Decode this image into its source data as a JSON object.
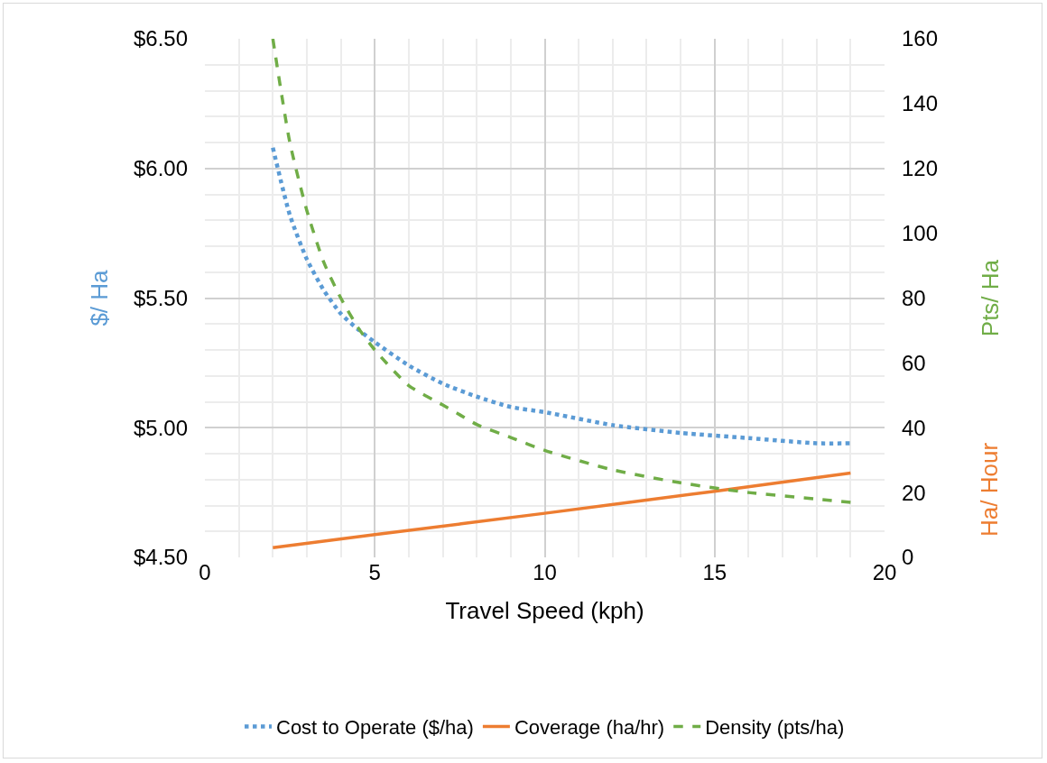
{
  "chart_data": {
    "type": "line",
    "xlabel": "Travel Speed (kph)",
    "ylabel": "$/ Ha",
    "y2label": "Pts/ Ha",
    "y3label": "Ha/ Hour",
    "xlim": [
      0,
      20
    ],
    "xticks": [
      0,
      5,
      10,
      15,
      20
    ],
    "ylim": [
      4.5,
      6.5
    ],
    "yticks": [
      {
        "value": 4.5,
        "label": "$4.50"
      },
      {
        "value": 5,
        "label": "$5.00"
      },
      {
        "value": 5.5,
        "label": "$5.50"
      },
      {
        "value": 6,
        "label": "$6.00"
      },
      {
        "value": 6.5,
        "label": "$6.50"
      }
    ],
    "y2lim": [
      0,
      160
    ],
    "y2ticks": [
      0,
      20,
      40,
      60,
      80,
      100,
      120,
      140,
      160
    ],
    "grid": true,
    "legend": "bottom",
    "marker": "none",
    "series": [
      {
        "name": "Cost to Operate ($/ha)",
        "color": "#5b9bd5",
        "line_style": "dotted",
        "x": [
          2,
          2.5,
          3,
          3.5,
          4,
          4.5,
          5,
          6,
          7,
          8,
          9,
          10,
          12,
          14,
          16,
          18,
          19
        ],
        "values": [
          6.08,
          5.82,
          5.65,
          5.53,
          5.44,
          5.38,
          5.33,
          5.24,
          5.17,
          5.12,
          5.08,
          5.06,
          5.01,
          4.98,
          4.96,
          4.94,
          4.94
        ]
      },
      {
        "name": "Coverage (ha/hr)",
        "color": "#ed7d31",
        "line_style": "solid",
        "axis": "y2",
        "x": [
          2,
          5,
          10,
          15,
          19
        ],
        "values": [
          3,
          7,
          13.6,
          20.4,
          26
        ]
      },
      {
        "name": "Density (pts/ha)",
        "color": "#70ad47",
        "line_style": "dashed",
        "axis": "y2",
        "x": [
          2,
          2.5,
          3,
          3.5,
          4,
          4.5,
          5,
          6,
          7,
          7.5,
          8,
          9,
          10,
          12,
          14,
          16,
          18,
          19
        ],
        "values": [
          160,
          128,
          107,
          91,
          80,
          71,
          64,
          53,
          47,
          44,
          41,
          37,
          33,
          27,
          23,
          20,
          18,
          17
        ]
      }
    ]
  }
}
